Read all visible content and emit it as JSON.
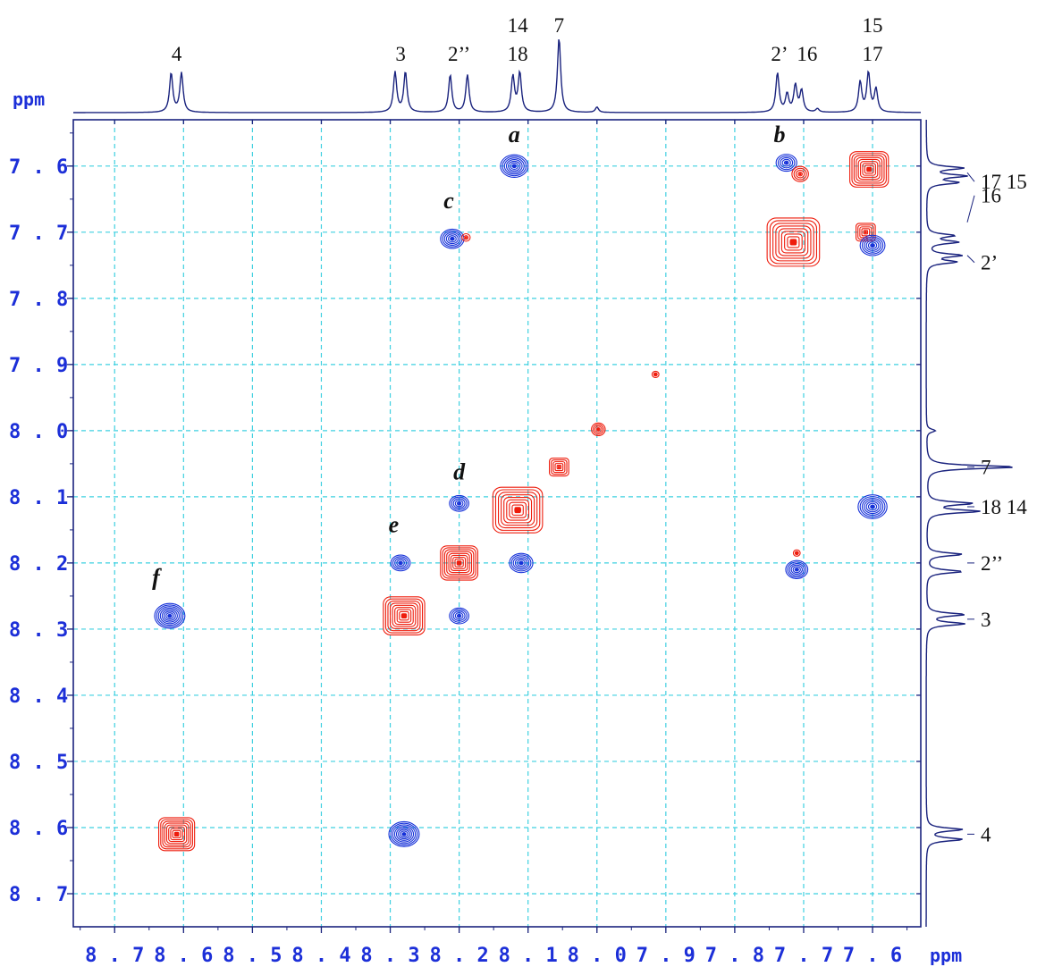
{
  "chart_data": {
    "type": "2D NMR contour plot",
    "axis_unit_label": "ppm",
    "x_axis": {
      "label": "ppm",
      "range": [
        8.76,
        7.53
      ],
      "reversed": true,
      "ticks": [
        "8.7",
        "8.6",
        "8.5",
        "8.4",
        "8.3",
        "8.2",
        "8.1",
        "8.0",
        "7.9",
        "7.8",
        "7.7",
        "7.6"
      ]
    },
    "y_axis": {
      "label": "ppm",
      "range": [
        7.53,
        8.75
      ],
      "reversed": true,
      "ticks": [
        "7.6",
        "7.7",
        "7.8",
        "7.9",
        "8.0",
        "8.1",
        "8.2",
        "8.3",
        "8.4",
        "8.5",
        "8.6",
        "8.7"
      ]
    },
    "grid": true,
    "colors": {
      "axis": "#1a237e",
      "grid": "#3fd0e0",
      "positive": "#ee1c0c",
      "negative": "#1530d8",
      "ticks": "#1c2fd8"
    },
    "top_projection_labels": [
      {
        "text": "4",
        "ppm": 8.61
      },
      {
        "text": "3",
        "ppm": 8.285
      },
      {
        "text": "2’’",
        "ppm": 8.2
      },
      {
        "text": "14",
        "ppm": 8.115,
        "row": 2
      },
      {
        "text": "18",
        "ppm": 8.115
      },
      {
        "text": "7",
        "ppm": 8.055,
        "row": 2
      },
      {
        "text": "2’",
        "ppm": 7.735
      },
      {
        "text": "16",
        "ppm": 7.695
      },
      {
        "text": "15",
        "ppm": 7.6,
        "row": 2
      },
      {
        "text": "17",
        "ppm": 7.6
      }
    ],
    "side_projection_labels": [
      {
        "text": "17 15",
        "ppm": 7.61
      },
      {
        "text": "16",
        "ppm": 7.685
      },
      {
        "text": "2’",
        "ppm": 7.735
      },
      {
        "text": "7",
        "ppm": 8.055
      },
      {
        "text": "18 14",
        "ppm": 8.115
      },
      {
        "text": "2’’",
        "ppm": 8.2
      },
      {
        "text": "3",
        "ppm": 8.285
      },
      {
        "text": "4",
        "ppm": 8.61
      }
    ],
    "crosspeak_labels": [
      {
        "text": "a",
        "x": 8.12,
        "y": 7.55
      },
      {
        "text": "b",
        "x": 7.735,
        "y": 7.55
      },
      {
        "text": "c",
        "x": 8.215,
        "y": 7.65
      },
      {
        "text": "d",
        "x": 8.2,
        "y": 8.06
      },
      {
        "text": "e",
        "x": 8.295,
        "y": 8.14
      },
      {
        "text": "f",
        "x": 8.64,
        "y": 8.22
      }
    ],
    "peaks": [
      {
        "x": 8.61,
        "y": 8.61,
        "sign": "positive",
        "size": 0.026
      },
      {
        "x": 8.28,
        "y": 8.61,
        "sign": "negative",
        "size": 0.022
      },
      {
        "x": 8.62,
        "y": 8.28,
        "sign": "negative",
        "size": 0.022
      },
      {
        "x": 8.28,
        "y": 8.28,
        "sign": "positive",
        "size": 0.03
      },
      {
        "x": 8.285,
        "y": 8.2,
        "sign": "negative",
        "size": 0.014
      },
      {
        "x": 8.2,
        "y": 8.2,
        "sign": "positive",
        "size": 0.027
      },
      {
        "x": 8.2,
        "y": 8.28,
        "sign": "negative",
        "size": 0.014
      },
      {
        "x": 8.2,
        "y": 8.11,
        "sign": "negative",
        "size": 0.014
      },
      {
        "x": 8.11,
        "y": 8.2,
        "sign": "negative",
        "size": 0.017
      },
      {
        "x": 8.115,
        "y": 8.12,
        "sign": "positive",
        "size": 0.036
      },
      {
        "x": 8.055,
        "y": 8.055,
        "sign": "positive",
        "size": 0.014
      },
      {
        "x": 7.998,
        "y": 7.998,
        "sign": "positive",
        "size": 0.01
      },
      {
        "x": 7.915,
        "y": 7.915,
        "sign": "positive",
        "size": 0.005
      },
      {
        "x": 8.12,
        "y": 7.6,
        "sign": "negative",
        "size": 0.02
      },
      {
        "x": 8.21,
        "y": 7.71,
        "sign": "negative",
        "size": 0.017
      },
      {
        "x": 8.19,
        "y": 7.708,
        "sign": "positive",
        "size": 0.006
      },
      {
        "x": 7.725,
        "y": 7.595,
        "sign": "negative",
        "size": 0.015
      },
      {
        "x": 7.705,
        "y": 7.612,
        "sign": "positive",
        "size": 0.012
      },
      {
        "x": 7.605,
        "y": 7.605,
        "sign": "positive",
        "size": 0.028
      },
      {
        "x": 7.715,
        "y": 7.715,
        "sign": "positive",
        "size": 0.038
      },
      {
        "x": 7.61,
        "y": 7.7,
        "sign": "positive",
        "size": 0.014
      },
      {
        "x": 7.6,
        "y": 7.72,
        "sign": "negative",
        "size": 0.018
      },
      {
        "x": 7.6,
        "y": 8.115,
        "sign": "negative",
        "size": 0.021
      },
      {
        "x": 7.71,
        "y": 8.21,
        "sign": "negative",
        "size": 0.016
      },
      {
        "x": 7.71,
        "y": 8.185,
        "sign": "positive",
        "size": 0.005
      }
    ]
  }
}
